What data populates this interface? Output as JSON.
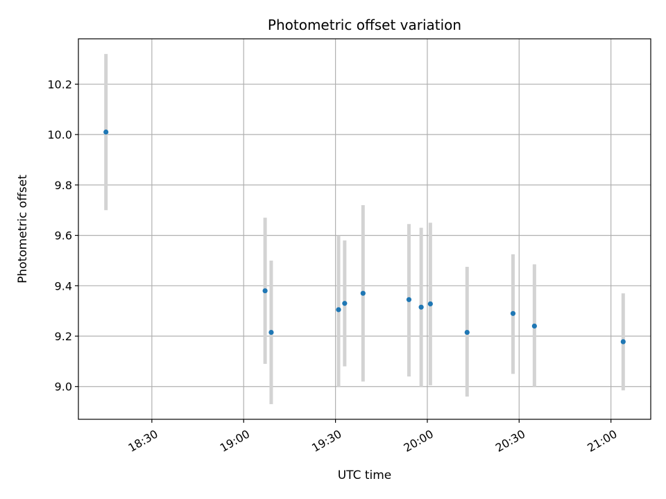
{
  "chart_data": {
    "type": "scatter",
    "title": "Photometric offset variation",
    "xlabel": "UTC time",
    "ylabel": "Photometric offset",
    "xlim": [
      "18:06",
      "21:13"
    ],
    "ylim": [
      8.87,
      10.38
    ],
    "x_ticks": [
      "18:30",
      "19:00",
      "19:30",
      "20:00",
      "20:30",
      "21:00"
    ],
    "y_ticks": [
      "9.0",
      "9.2",
      "9.4",
      "9.6",
      "9.8",
      "10.0",
      "10.2"
    ],
    "grid": true,
    "colors": {
      "marker": "#1f77b4",
      "errorbar": "#d3d3d3",
      "grid": "#b0b0b0"
    },
    "points": [
      {
        "time": "18:15",
        "y": 10.01,
        "ylow": 9.7,
        "yhigh": 10.32
      },
      {
        "time": "19:07",
        "y": 9.38,
        "ylow": 9.09,
        "yhigh": 9.67
      },
      {
        "time": "19:09",
        "y": 9.215,
        "ylow": 8.93,
        "yhigh": 9.5
      },
      {
        "time": "19:31",
        "y": 9.305,
        "ylow": 9.0,
        "yhigh": 9.6
      },
      {
        "time": "19:33",
        "y": 9.33,
        "ylow": 9.08,
        "yhigh": 9.58
      },
      {
        "time": "19:39",
        "y": 9.37,
        "ylow": 9.02,
        "yhigh": 9.72
      },
      {
        "time": "19:54",
        "y": 9.345,
        "ylow": 9.04,
        "yhigh": 9.645
      },
      {
        "time": "19:58",
        "y": 9.315,
        "ylow": 9.0,
        "yhigh": 9.63
      },
      {
        "time": "20:01",
        "y": 9.328,
        "ylow": 9.005,
        "yhigh": 9.65
      },
      {
        "time": "20:13",
        "y": 9.215,
        "ylow": 8.96,
        "yhigh": 9.475
      },
      {
        "time": "20:28",
        "y": 9.29,
        "ylow": 9.05,
        "yhigh": 9.525
      },
      {
        "time": "20:35",
        "y": 9.24,
        "ylow": 9.0,
        "yhigh": 9.485
      },
      {
        "time": "21:04",
        "y": 9.178,
        "ylow": 8.985,
        "yhigh": 9.37
      }
    ]
  }
}
